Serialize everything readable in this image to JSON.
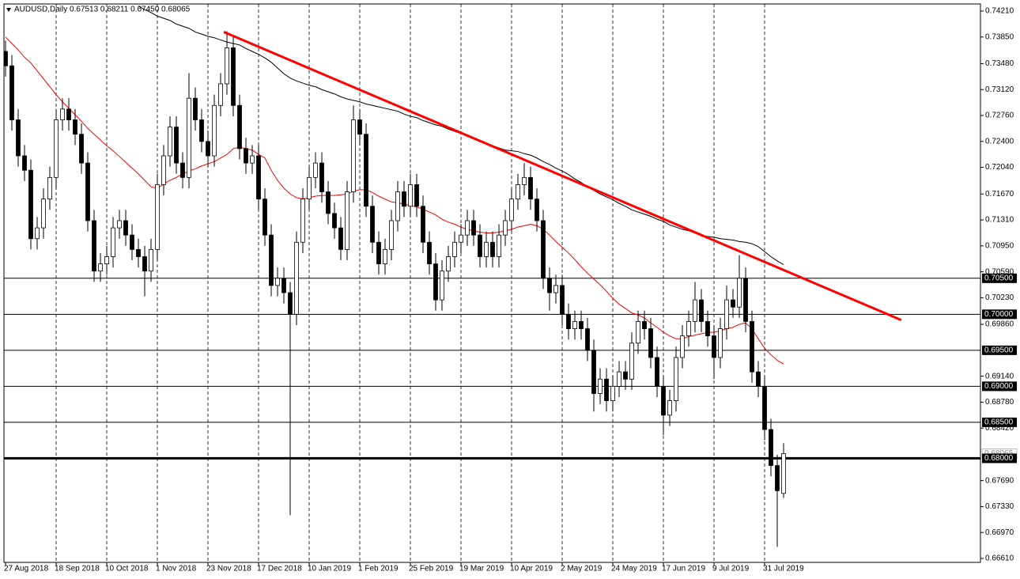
{
  "chart_data": {
    "type": "candlestick",
    "title": "AUDUSD,Daily  0.67513 0.68211 0.67450 0.68065",
    "categories": [
      "27 Aug 2018",
      null,
      null,
      null,
      null,
      null,
      null,
      null,
      "18 Sep 2018",
      null,
      null,
      null,
      null,
      null,
      null,
      null,
      "10 Oct 2018",
      null,
      null,
      null,
      null,
      null,
      null,
      null,
      "1 Nov 2018",
      null,
      null,
      null,
      null,
      null,
      null,
      null,
      "23 Nov 2018",
      null,
      null,
      null,
      null,
      null,
      null,
      null,
      "17 Dec 2018",
      null,
      null,
      null,
      null,
      null,
      null,
      null,
      "10 Jan 2019",
      null,
      null,
      null,
      null,
      null,
      null,
      null,
      "1 Feb 2019",
      null,
      null,
      null,
      null,
      null,
      null,
      null,
      "25 Feb 2019",
      null,
      null,
      null,
      null,
      null,
      null,
      null,
      "19 Mar 2019",
      null,
      null,
      null,
      null,
      null,
      null,
      null,
      "10 Apr 2019",
      null,
      null,
      null,
      null,
      null,
      null,
      null,
      "2 May 2019",
      null,
      null,
      null,
      null,
      null,
      null,
      null,
      "24 May 2019",
      null,
      null,
      null,
      null,
      null,
      null,
      null,
      "17 Jun 2019",
      null,
      null,
      null,
      null,
      null,
      null,
      null,
      "9 Jul 2019",
      null,
      null,
      null,
      null,
      null,
      null,
      null,
      "31 Jul 2019",
      null,
      null,
      null
    ],
    "open": [
      0.7365,
      0.7345,
      0.727,
      0.722,
      0.72,
      0.7105,
      0.712,
      0.716,
      0.719,
      0.727,
      0.7285,
      0.727,
      0.725,
      0.721,
      0.713,
      0.706,
      0.707,
      0.708,
      0.712,
      0.713,
      0.711,
      0.709,
      0.708,
      0.706,
      0.709,
      0.718,
      0.722,
      0.726,
      0.721,
      0.719,
      0.73,
      0.727,
      0.724,
      0.722,
      0.729,
      0.732,
      0.737,
      0.729,
      0.723,
      0.721,
      0.722,
      0.716,
      0.711,
      0.704,
      0.705,
      0.703,
      0.7,
      0.71,
      0.716,
      0.719,
      0.721,
      0.717,
      0.714,
      0.712,
      0.709,
      0.717,
      0.727,
      0.725,
      0.715,
      0.71,
      0.707,
      0.709,
      0.713,
      0.717,
      0.715,
      0.718,
      0.715,
      0.71,
      0.707,
      0.702,
      0.706,
      0.708,
      0.71,
      0.711,
      0.713,
      0.711,
      0.708,
      0.71,
      0.708,
      0.711,
      0.713,
      0.716,
      0.718,
      0.719,
      0.716,
      0.713,
      0.705,
      0.703,
      0.704,
      0.7,
      0.698,
      0.699,
      0.698,
      0.695,
      0.689,
      0.691,
      0.688,
      0.69,
      0.692,
      0.691,
      0.696,
      0.699,
      0.698,
      0.694,
      0.69,
      0.686,
      0.688,
      0.694,
      0.697,
      0.699,
      0.702,
      0.699,
      0.697,
      0.694,
      0.698,
      0.702,
      0.701,
      0.705,
      0.699,
      0.692,
      0.69,
      0.684,
      0.679,
      0.67513
    ],
    "high": [
      0.738,
      0.736,
      0.7285,
      0.7235,
      0.7215,
      0.7135,
      0.7175,
      0.7205,
      0.7285,
      0.73,
      0.73,
      0.7285,
      0.7265,
      0.7225,
      0.7145,
      0.7085,
      0.7095,
      0.7135,
      0.7145,
      0.7145,
      0.7125,
      0.7105,
      0.7095,
      0.7105,
      0.7195,
      0.7235,
      0.7275,
      0.7275,
      0.7225,
      0.7335,
      0.7315,
      0.7285,
      0.7255,
      0.7305,
      0.7335,
      0.7393,
      0.7385,
      0.7305,
      0.7245,
      0.7235,
      0.7235,
      0.7175,
      0.7125,
      0.7065,
      0.7065,
      0.7045,
      0.7115,
      0.7175,
      0.7205,
      0.7225,
      0.7225,
      0.7185,
      0.7155,
      0.7135,
      0.7185,
      0.729,
      0.7285,
      0.7265,
      0.7165,
      0.7115,
      0.7105,
      0.7145,
      0.7185,
      0.7185,
      0.7195,
      0.7195,
      0.7165,
      0.7115,
      0.7085,
      0.7075,
      0.7095,
      0.7115,
      0.7125,
      0.7145,
      0.7145,
      0.7125,
      0.7115,
      0.7115,
      0.7125,
      0.7145,
      0.7175,
      0.7195,
      0.721,
      0.7205,
      0.7175,
      0.7145,
      0.7065,
      0.7055,
      0.7055,
      0.7015,
      0.7005,
      0.7005,
      0.6995,
      0.6965,
      0.6925,
      0.6925,
      0.6915,
      0.6935,
      0.6935,
      0.6975,
      0.7005,
      0.7005,
      0.6995,
      0.6955,
      0.6915,
      0.6895,
      0.6955,
      0.6985,
      0.7005,
      0.7045,
      0.7035,
      0.7005,
      0.6985,
      0.6995,
      0.704,
      0.7035,
      0.7082,
      0.7065,
      0.7005,
      0.6935,
      0.6915,
      0.6855,
      0.6805,
      0.68211
    ],
    "low": [
      0.733,
      0.7255,
      0.7205,
      0.7185,
      0.709,
      0.709,
      0.7105,
      0.7145,
      0.7175,
      0.7255,
      0.7255,
      0.7235,
      0.7195,
      0.7115,
      0.7045,
      0.7045,
      0.7055,
      0.7065,
      0.7105,
      0.7095,
      0.7075,
      0.7065,
      0.7025,
      0.7045,
      0.7075,
      0.7165,
      0.7205,
      0.7195,
      0.7175,
      0.7175,
      0.7255,
      0.7225,
      0.7205,
      0.7205,
      0.7275,
      0.7305,
      0.7275,
      0.7215,
      0.7195,
      0.7195,
      0.7145,
      0.7095,
      0.7025,
      0.7025,
      0.7015,
      0.6721,
      0.6985,
      0.7085,
      0.7145,
      0.7175,
      0.7155,
      0.7125,
      0.7105,
      0.7075,
      0.7075,
      0.7155,
      0.7235,
      0.7135,
      0.7085,
      0.7055,
      0.7055,
      0.7075,
      0.7115,
      0.7135,
      0.7135,
      0.7135,
      0.7085,
      0.7055,
      0.7005,
      0.7005,
      0.7045,
      0.7065,
      0.7085,
      0.7095,
      0.7095,
      0.7065,
      0.7065,
      0.7065,
      0.7065,
      0.7095,
      0.7115,
      0.7145,
      0.7165,
      0.7145,
      0.7115,
      0.7035,
      0.7005,
      0.7015,
      0.6985,
      0.6965,
      0.6965,
      0.6965,
      0.6935,
      0.6865,
      0.6875,
      0.6865,
      0.6865,
      0.6885,
      0.6895,
      0.6895,
      0.6945,
      0.6965,
      0.6925,
      0.6885,
      0.6832,
      0.6845,
      0.6865,
      0.6925,
      0.6955,
      0.6975,
      0.6975,
      0.6955,
      0.691,
      0.6925,
      0.6965,
      0.6995,
      0.6995,
      0.6975,
      0.6905,
      0.6885,
      0.6825,
      0.6775,
      0.6677,
      0.6745
    ],
    "close": [
      0.7345,
      0.727,
      0.722,
      0.72,
      0.7105,
      0.712,
      0.716,
      0.719,
      0.727,
      0.7285,
      0.727,
      0.725,
      0.721,
      0.713,
      0.706,
      0.707,
      0.708,
      0.712,
      0.713,
      0.711,
      0.709,
      0.708,
      0.706,
      0.709,
      0.718,
      0.722,
      0.726,
      0.721,
      0.719,
      0.73,
      0.727,
      0.724,
      0.722,
      0.729,
      0.732,
      0.737,
      0.729,
      0.723,
      0.721,
      0.722,
      0.716,
      0.711,
      0.704,
      0.705,
      0.703,
      0.7,
      0.71,
      0.716,
      0.719,
      0.721,
      0.717,
      0.714,
      0.712,
      0.709,
      0.717,
      0.727,
      0.725,
      0.715,
      0.71,
      0.707,
      0.709,
      0.713,
      0.717,
      0.715,
      0.718,
      0.715,
      0.71,
      0.707,
      0.702,
      0.706,
      0.708,
      0.71,
      0.711,
      0.713,
      0.711,
      0.708,
      0.71,
      0.708,
      0.711,
      0.713,
      0.716,
      0.718,
      0.719,
      0.716,
      0.713,
      0.705,
      0.703,
      0.704,
      0.7,
      0.698,
      0.699,
      0.698,
      0.695,
      0.689,
      0.691,
      0.688,
      0.69,
      0.692,
      0.691,
      0.696,
      0.699,
      0.698,
      0.694,
      0.69,
      0.686,
      0.688,
      0.694,
      0.697,
      0.699,
      0.702,
      0.699,
      0.697,
      0.694,
      0.698,
      0.702,
      0.701,
      0.705,
      0.699,
      0.692,
      0.69,
      0.684,
      0.679,
      0.6755,
      0.68065
    ],
    "up_color": "#ffffff",
    "down_color": "#000000",
    "moving_averages": [
      {
        "color": "#ff0000",
        "values": [
          0.7385,
          0.7376,
          0.7367,
          0.7357,
          0.7349,
          0.7338,
          0.7327,
          0.7316,
          0.7305,
          0.7295,
          0.7286,
          0.7277,
          0.7268,
          0.7258,
          0.725,
          0.7242,
          0.7234,
          0.7227,
          0.7219,
          0.7211,
          0.7203,
          0.7195,
          0.7186,
          0.7177,
          0.7175,
          0.7181,
          0.7186,
          0.719,
          0.7195,
          0.7199,
          0.7202,
          0.7206,
          0.7209,
          0.7212,
          0.7217,
          0.7222,
          0.723,
          0.7232,
          0.723,
          0.7228,
          0.7222,
          0.7217,
          0.72,
          0.7186,
          0.7175,
          0.7167,
          0.7162,
          0.716,
          0.7162,
          0.7164,
          0.7165,
          0.7165,
          0.7165,
          0.7166,
          0.7167,
          0.7171,
          0.7173,
          0.7173,
          0.7169,
          0.7164,
          0.716,
          0.7156,
          0.7155,
          0.7153,
          0.7151,
          0.7149,
          0.7146,
          0.7142,
          0.7138,
          0.7132,
          0.7128,
          0.7125,
          0.7121,
          0.7118,
          0.7116,
          0.7114,
          0.7113,
          0.7113,
          0.7114,
          0.7116,
          0.7118,
          0.7121,
          0.7123,
          0.7125,
          0.7123,
          0.7118,
          0.711,
          0.7101,
          0.7093,
          0.7085,
          0.7076,
          0.7066,
          0.7057,
          0.7049,
          0.7041,
          0.7032,
          0.7022,
          0.7014,
          0.7008,
          0.7002,
          0.6999,
          0.6995,
          0.6988,
          0.6982,
          0.6975,
          0.697,
          0.6966,
          0.6966,
          0.6969,
          0.6971,
          0.6973,
          0.6975,
          0.6975,
          0.6977,
          0.698,
          0.6982,
          0.6986,
          0.6988,
          0.698,
          0.6966,
          0.6953,
          0.6944,
          0.6936,
          0.6931
        ]
      },
      {
        "color": "#000000",
        "values": [
          null,
          null,
          null,
          null,
          null,
          null,
          null,
          null,
          null,
          null,
          null,
          null,
          null,
          null,
          null,
          null,
          null,
          null,
          null,
          null,
          null,
          0.7428,
          0.7423,
          0.7419,
          0.7414,
          0.7411,
          0.7408,
          0.7403,
          0.74,
          0.7397,
          0.7392,
          0.7389,
          0.7386,
          0.7384,
          0.7381,
          0.7378,
          0.7376,
          0.7374,
          0.7369,
          0.7365,
          0.7361,
          0.7356,
          0.735,
          0.7342,
          0.7334,
          0.7328,
          0.7324,
          0.7321,
          0.7318,
          0.7316,
          0.7312,
          0.7309,
          0.7306,
          0.7302,
          0.7299,
          0.7297,
          0.7295,
          0.7292,
          0.729,
          0.7288,
          0.7286,
          0.7284,
          0.7282,
          0.7278,
          0.7275,
          0.7273,
          0.7269,
          0.7266,
          0.7263,
          0.7261,
          0.7257,
          0.7254,
          0.7251,
          0.7247,
          0.7244,
          0.7241,
          0.7238,
          0.7234,
          0.7231,
          0.7228,
          0.7227,
          0.7226,
          0.7223,
          0.7221,
          0.7217,
          0.7212,
          0.7208,
          0.7203,
          0.7199,
          0.7194,
          0.7188,
          0.7183,
          0.7177,
          0.7172,
          0.7167,
          0.7163,
          0.7159,
          0.7154,
          0.715,
          0.7145,
          0.7142,
          0.7139,
          0.7136,
          0.7132,
          0.7129,
          0.7124,
          0.7121,
          0.7118,
          0.7116,
          0.7113,
          0.711,
          0.7108,
          0.7107,
          0.7105,
          0.7104,
          0.7103,
          0.7101,
          0.71,
          0.7098,
          0.7094,
          0.7087,
          0.708,
          0.7074,
          0.7069
        ]
      }
    ],
    "trendline": {
      "color": "#ff0000",
      "x": [
        34.5,
        141.6
      ],
      "values": [
        0.7392,
        0.6992
      ]
    },
    "levels": [
      {
        "value": 0.705,
        "label": "0.70500"
      },
      {
        "value": 0.7,
        "label": "0.70000"
      },
      {
        "value": 0.695,
        "label": "0.69500"
      },
      {
        "value": 0.69,
        "label": "0.69000"
      },
      {
        "value": 0.685,
        "label": "0.68500"
      },
      {
        "value": 0.68,
        "label": "0.68000"
      }
    ],
    "last_price": {
      "value": 0.68065,
      "label": "0.68065"
    },
    "ylim": [
      0.66555,
      0.74309
    ],
    "yticks": [
      {
        "value": 0.7421,
        "label": "0.74210"
      },
      {
        "value": 0.7385,
        "label": "0.73850"
      },
      {
        "value": 0.7348,
        "label": "0.73480"
      },
      {
        "value": 0.7312,
        "label": "0.73120"
      },
      {
        "value": 0.7276,
        "label": "0.72760"
      },
      {
        "value": 0.724,
        "label": "0.72400"
      },
      {
        "value": 0.7204,
        "label": "0.72040"
      },
      {
        "value": 0.7167,
        "label": "0.71670"
      },
      {
        "value": 0.7131,
        "label": "0.71310"
      },
      {
        "value": 0.7095,
        "label": "0.70950"
      },
      {
        "value": 0.7059,
        "label": "0.70590"
      },
      {
        "value": 0.7023,
        "label": "0.70230"
      },
      {
        "value": 0.6986,
        "label": "0.69860"
      },
      {
        "value": 0.6914,
        "label": "0.69140"
      },
      {
        "value": 0.6878,
        "label": "0.68780"
      },
      {
        "value": 0.6842,
        "label": "0.68420"
      },
      {
        "value": 0.6769,
        "label": "0.67690"
      },
      {
        "value": 0.6733,
        "label": "0.67330"
      },
      {
        "value": 0.6697,
        "label": "0.66970"
      },
      {
        "value": 0.6661,
        "label": "0.66610"
      }
    ]
  }
}
